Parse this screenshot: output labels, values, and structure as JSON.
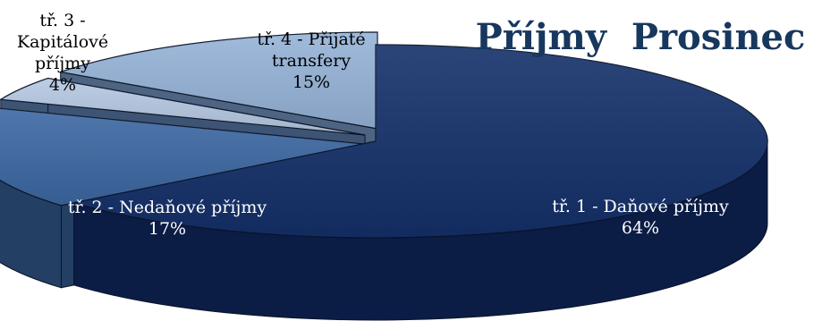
{
  "chart_data": {
    "type": "pie",
    "title": "Příjmy  Prosinec",
    "slices": [
      {
        "category_lines": [
          "tř. 1 - Daňové příjmy"
        ],
        "value": 64,
        "value_label": "64%",
        "color": "#14306a",
        "side_color": "#0b1c45"
      },
      {
        "category_lines": [
          "tř. 2 - Nedaňové příjmy"
        ],
        "value": 17,
        "value_label": "17%",
        "color": "#3c68a3",
        "side_color": "#233f63"
      },
      {
        "category_lines": [
          "tř. 3 -",
          "Kapitálové",
          "příjmy"
        ],
        "value": 4,
        "value_label": "4%",
        "color": "#b5c8e2",
        "side_color": "#3d5474"
      },
      {
        "category_lines": [
          "tř. 4 - Přijaté",
          "transfery"
        ],
        "value": 15,
        "value_label": "15%",
        "color": "#95b3d7",
        "side_color": "#4d6482"
      }
    ],
    "legend": "none",
    "data_labels": "category and percentage",
    "style": "3d-exploded"
  }
}
